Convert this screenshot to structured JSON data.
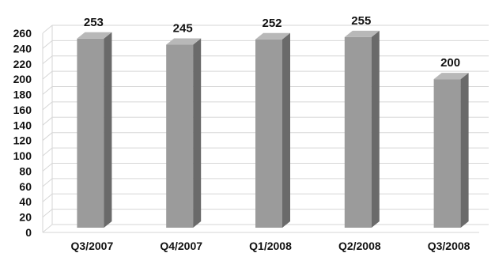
{
  "chart_data": {
    "type": "bar",
    "categories": [
      "Q3/2007",
      "Q4/2007",
      "Q1/2008",
      "Q2/2008",
      "Q3/2008"
    ],
    "values": [
      253,
      245,
      252,
      255,
      200
    ],
    "data_labels": [
      "253",
      "245",
      "252",
      "255",
      "200"
    ],
    "ylim": [
      0,
      260
    ],
    "yticks": [
      0,
      20,
      40,
      60,
      80,
      100,
      120,
      140,
      160,
      180,
      200,
      220,
      240,
      260
    ],
    "grid": true,
    "bar_style": "3d",
    "colors": {
      "bar_front": "#9b9b9b",
      "bar_side": "#6a6a6a",
      "bar_top": "#b8b8b8",
      "grid": "#d6d6d6"
    }
  }
}
